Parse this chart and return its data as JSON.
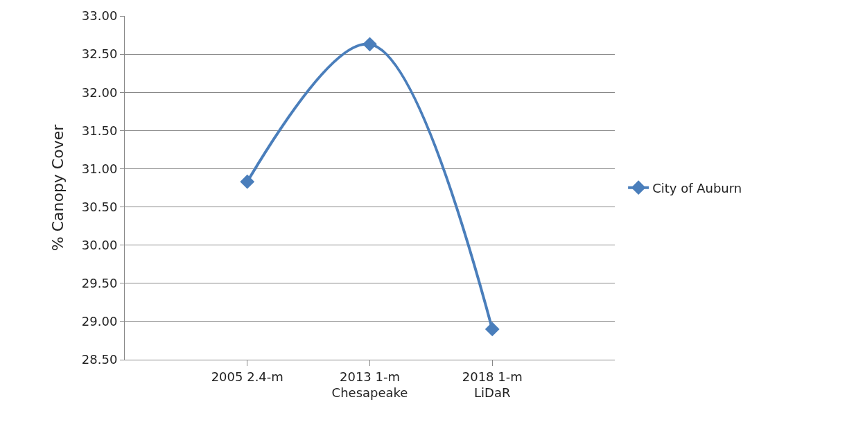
{
  "chart_data": {
    "type": "line",
    "ylabel": "% Canopy Cover",
    "categories": [
      "2005 2.4-m",
      "2013 1-m\nChesapeake",
      "2018 1-m\nLiDaR"
    ],
    "series": [
      {
        "name": "City of Auburn",
        "color": "#4a7ebb",
        "values": [
          30.83,
          32.63,
          28.9
        ]
      }
    ],
    "ylim": [
      28.5,
      33.0
    ],
    "yticks": [
      {
        "value": 28.5,
        "label": "28.50"
      },
      {
        "value": 29.0,
        "label": "29.00"
      },
      {
        "value": 29.5,
        "label": "29.50"
      },
      {
        "value": 30.0,
        "label": "30.00"
      },
      {
        "value": 30.5,
        "label": "30.50"
      },
      {
        "value": 31.0,
        "label": "31.00"
      },
      {
        "value": 31.5,
        "label": "31.50"
      },
      {
        "value": 32.0,
        "label": "32.00"
      },
      {
        "value": 32.5,
        "label": "32.50"
      },
      {
        "value": 33.0,
        "label": "33.00"
      }
    ],
    "grid": "y",
    "legend": "right",
    "marker": "diamond",
    "line_style": "solid"
  }
}
